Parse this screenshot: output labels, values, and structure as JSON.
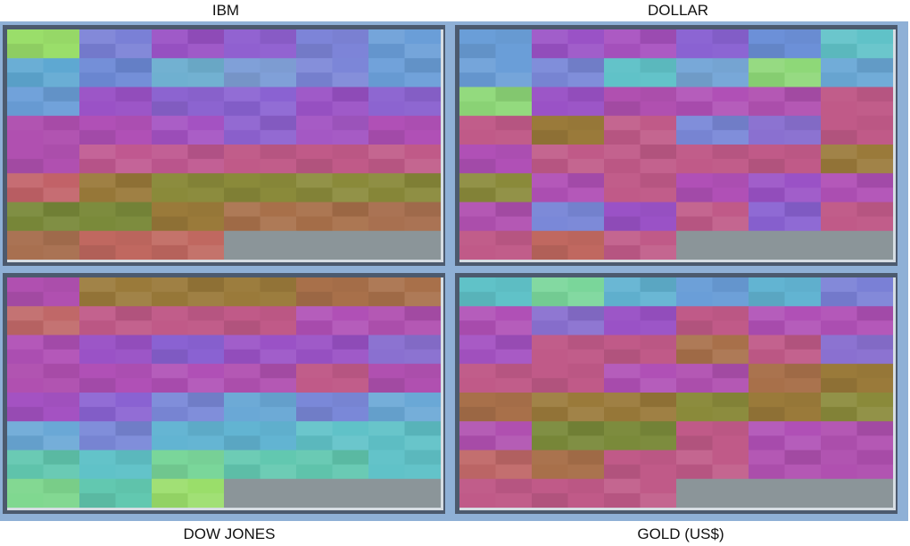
{
  "titles": {
    "ibm": "IBM",
    "dollar": "DOLLAR",
    "dow": "DOW JONES",
    "gold": "GOLD (US$)"
  },
  "colors": {
    "frame": "#8fb0d6",
    "panel_border": "#4c5a6e",
    "empty": "#8b9599"
  },
  "chart_data": [
    {
      "type": "heatmap",
      "title": "IBM",
      "layout": "recursive pattern: 8 rows x 6 columns of cell blocks",
      "cells_per_row": 6,
      "rows": 8,
      "row_colors": [
        [
          "#9ade6a",
          "#7a80d6",
          "#9a52c6",
          "#9060d0",
          "#7d84d8",
          "#6a9ed8"
        ],
        [
          "#5ea8d2",
          "#6d8ad6",
          "#6fb0d0",
          "#80a0d8",
          "#7c86d8",
          "#6a9ed8"
        ],
        [
          "#6a9ed8",
          "#9a52c6",
          "#8c64d0",
          "#8a62d2",
          "#9a52c6",
          "#8c64d0"
        ],
        [
          "#b050b0",
          "#b050b6",
          "#a452c2",
          "#8e62d0",
          "#a458c4",
          "#b050b6"
        ],
        [
          "#b050b0",
          "#c05890",
          "#bf5890",
          "#c05a88",
          "#c05a88",
          "#c05a88"
        ],
        [
          "#c26268",
          "#9a7a3a",
          "#8a8a3a",
          "#8a8a3a",
          "#8a8a3a",
          "#8a8a3a"
        ],
        [
          "#7a8a3a",
          "#7a8a3a",
          "#9a7a3a",
          "#a8704a",
          "#a8704a",
          "#a87050"
        ],
        [
          "#a87050",
          "#c06860",
          "#c06860",
          null,
          null,
          null
        ]
      ]
    },
    {
      "type": "heatmap",
      "title": "DOLLAR",
      "cells_per_row": 6,
      "rows": 8,
      "row_colors": [
        [
          "#6a9ed8",
          "#9a52c6",
          "#a852c0",
          "#8a62d2",
          "#6c90d8",
          "#60c2c8"
        ],
        [
          "#6a9ed8",
          "#7a88d8",
          "#60c2c8",
          "#78a8d8",
          "#8ed878",
          "#6aa8d6"
        ],
        [
          "#8ed878",
          "#9a52c6",
          "#b050b0",
          "#b050b6",
          "#b050b0",
          "#c05a88"
        ],
        [
          "#c05a88",
          "#9a7a3a",
          "#c05a88",
          "#7a88d8",
          "#8a70d0",
          "#c05a88"
        ],
        [
          "#b050b6",
          "#c05a88",
          "#c05a88",
          "#c05a88",
          "#c05a88",
          "#9a7a3a"
        ],
        [
          "#8a8a3a",
          "#b050b6",
          "#c05a88",
          "#b050b6",
          "#9a52c6",
          "#b050b6"
        ],
        [
          "#b050b0",
          "#7a88d8",
          "#9a52c6",
          "#c05a88",
          "#8a62d2",
          "#c05a88"
        ],
        [
          "#c05a88",
          "#c06860",
          "#c05a88",
          null,
          null,
          null
        ]
      ]
    },
    {
      "type": "heatmap",
      "title": "DOW JONES",
      "cells_per_row": 6,
      "rows": 8,
      "row_colors": [
        [
          "#b050b0",
          "#9a7a3a",
          "#9a7a3a",
          "#9a7a3a",
          "#a8704a",
          "#a8704a"
        ],
        [
          "#c06868",
          "#c05a88",
          "#c05a88",
          "#c05a88",
          "#b050b6",
          "#b050b0"
        ],
        [
          "#b050b6",
          "#9a52c6",
          "#8a62d2",
          "#9a52c6",
          "#9a52c6",
          "#8a70d0"
        ],
        [
          "#b050b0",
          "#b050b6",
          "#b050b6",
          "#b050b0",
          "#c05a88",
          "#b050b0"
        ],
        [
          "#a452c2",
          "#8a62d2",
          "#7a88d8",
          "#6aa8d6",
          "#7a88d8",
          "#6aa8d6"
        ],
        [
          "#6aa8d6",
          "#7a88d8",
          "#62b4d2",
          "#62b4d2",
          "#60c2c8",
          "#60c2c8"
        ],
        [
          "#62c8b0",
          "#60c2c8",
          "#7ad69a",
          "#62c8b0",
          "#62c8b0",
          "#60c2c8"
        ],
        [
          "#80d890",
          "#62c8b0",
          "#9ade6a",
          null,
          null,
          null
        ]
      ]
    },
    {
      "type": "heatmap",
      "title": "GOLD (US$)",
      "cells_per_row": 6,
      "rows": 8,
      "row_colors": [
        [
          "#60c2c8",
          "#7ad69a",
          "#62b4d2",
          "#6a9ed8",
          "#62b4d2",
          "#7a80d6"
        ],
        [
          "#b050b6",
          "#8a70d0",
          "#9a52c6",
          "#c05a88",
          "#b050b6",
          "#b050b6"
        ],
        [
          "#a452c2",
          "#c05a88",
          "#c05a88",
          "#a8704a",
          "#c05a88",
          "#8a70d0"
        ],
        [
          "#c05a88",
          "#c05a88",
          "#b050b6",
          "#b050b0",
          "#a8704a",
          "#9a7a3a"
        ],
        [
          "#a8704a",
          "#9a7a3a",
          "#9a7a3a",
          "#8a8a3a",
          "#9a7a3a",
          "#8a8a3a"
        ],
        [
          "#b050b0",
          "#7a8a3a",
          "#7a8a3a",
          "#c05a88",
          "#b050b6",
          "#b050b0"
        ],
        [
          "#c06868",
          "#a8704a",
          "#c05a88",
          "#c05a88",
          "#b050b0",
          "#b050b0"
        ],
        [
          "#c05a88",
          "#c05a88",
          "#c05a88",
          null,
          null,
          null
        ]
      ]
    }
  ]
}
